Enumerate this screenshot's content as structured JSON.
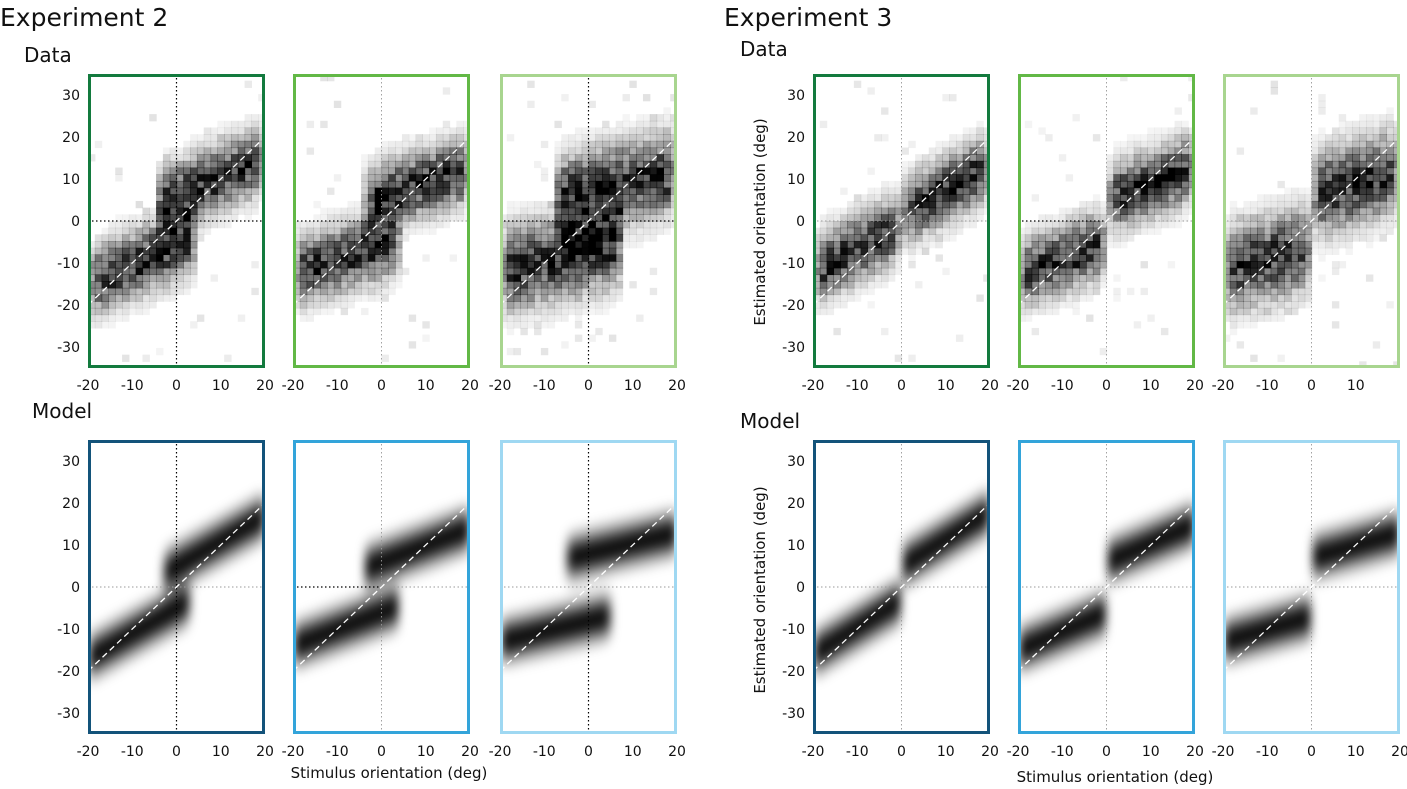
{
  "figure": {
    "experiments": [
      {
        "title": "Experiment 2",
        "data_label": "Data",
        "model_label": "Model",
        "xlabel": "Stimulus orientation (deg)",
        "ylabel": ""
      },
      {
        "title": "Experiment 3",
        "data_label": "Data",
        "model_label": "Model",
        "xlabel": "Stimulus orientation (deg)",
        "ylabel": "Estimated orientation (deg)"
      }
    ],
    "colors": {
      "data_frames": [
        "#137a3e",
        "#62b846",
        "#a8d58f"
      ],
      "model_frames": [
        "#13537a",
        "#33a4da",
        "#9fd8f2"
      ],
      "heat_dark": "#000000",
      "guide_line": "#ffffff"
    }
  },
  "chart_data": [
    {
      "type": "heatmap",
      "experiment": "Experiment 2",
      "row": "Data",
      "panel": 1,
      "xlim": [
        -20,
        20
      ],
      "ylim": [
        -35,
        35
      ],
      "x_ticks": [
        -20,
        -10,
        0,
        10,
        20
      ],
      "y_ticks": [
        30,
        20,
        10,
        0,
        -10,
        -20,
        -30
      ],
      "zero_lines": "black dotted (x=0 and y=0)",
      "identity_line": true,
      "lower_branch": {
        "x_range": [
          -20,
          5
        ],
        "intercept": -6,
        "slope": 0.45,
        "spread": 4
      },
      "upper_branch": {
        "x_range": [
          -5,
          20
        ],
        "intercept": 6,
        "slope": 0.45,
        "spread": 4
      }
    },
    {
      "type": "heatmap",
      "experiment": "Experiment 2",
      "row": "Data",
      "panel": 2,
      "xlim": [
        -20,
        20
      ],
      "ylim": [
        -35,
        35
      ],
      "x_ticks": [
        -20,
        -10,
        0,
        10,
        20
      ],
      "zero_lines": "black dotted y=0 (left half), gray dotted x=0",
      "identity_line": true,
      "lower_branch": {
        "x_range": [
          -20,
          4
        ],
        "intercept": -6,
        "slope": 0.32,
        "spread": 4
      },
      "upper_branch": {
        "x_range": [
          -4,
          20
        ],
        "intercept": 6,
        "slope": 0.32,
        "spread": 4
      }
    },
    {
      "type": "heatmap",
      "experiment": "Experiment 2",
      "row": "Data",
      "panel": 3,
      "xlim": [
        -20,
        20
      ],
      "ylim": [
        -35,
        35
      ],
      "x_ticks": [
        -20,
        -10,
        0,
        10,
        20
      ],
      "zero_lines": "black dotted (x=0 and y=0)",
      "identity_line": true,
      "lower_branch": {
        "x_range": [
          -20,
          8
        ],
        "intercept": -7,
        "slope": 0.25,
        "spread": 5
      },
      "upper_branch": {
        "x_range": [
          -8,
          20
        ],
        "intercept": 7,
        "slope": 0.25,
        "spread": 5
      }
    },
    {
      "type": "heatmap",
      "experiment": "Experiment 2",
      "row": "Model",
      "panel": 1,
      "xlim": [
        -20,
        20
      ],
      "ylim": [
        -35,
        35
      ],
      "x_ticks": [
        -20,
        -10,
        0,
        10,
        20
      ],
      "y_ticks": [
        30,
        20,
        10,
        0,
        -10,
        -20,
        -30
      ],
      "zero_lines": "black dotted x=0, gray dotted y=0",
      "identity_line": true,
      "lower_branch": {
        "x_range": [
          -20,
          3
        ],
        "intercept": -5,
        "slope": 0.6,
        "spread": 3
      },
      "upper_branch": {
        "x_range": [
          -3,
          20
        ],
        "intercept": 5,
        "slope": 0.6,
        "spread": 3
      }
    },
    {
      "type": "heatmap",
      "experiment": "Experiment 2",
      "row": "Model",
      "panel": 2,
      "xlim": [
        -20,
        20
      ],
      "ylim": [
        -35,
        35
      ],
      "x_ticks": [
        -20,
        -10,
        0,
        10,
        20
      ],
      "zero_lines": "black dotted y=0 (left half), gray dotted x=0",
      "identity_line": true,
      "lower_branch": {
        "x_range": [
          -20,
          4
        ],
        "intercept": -6,
        "slope": 0.4,
        "spread": 3
      },
      "upper_branch": {
        "x_range": [
          -4,
          20
        ],
        "intercept": 6,
        "slope": 0.4,
        "spread": 3
      }
    },
    {
      "type": "heatmap",
      "experiment": "Experiment 2",
      "row": "Model",
      "panel": 3,
      "xlim": [
        -20,
        20
      ],
      "ylim": [
        -35,
        35
      ],
      "x_ticks": [
        -20,
        -10,
        0,
        10,
        20
      ],
      "zero_lines": "black dotted x=0, gray dotted y=0",
      "identity_line": true,
      "lower_branch": {
        "x_range": [
          -20,
          5
        ],
        "intercept": -8,
        "slope": 0.25,
        "spread": 3
      },
      "upper_branch": {
        "x_range": [
          -5,
          20
        ],
        "intercept": 8,
        "slope": 0.25,
        "spread": 3
      }
    },
    {
      "type": "heatmap",
      "experiment": "Experiment 3",
      "row": "Data",
      "panel": 1,
      "xlim": [
        -20,
        20
      ],
      "ylim": [
        -35,
        35
      ],
      "x_ticks": [
        -20,
        -10,
        0,
        10,
        20
      ],
      "y_ticks": [
        30,
        20,
        10,
        0,
        -10,
        -20,
        -30
      ],
      "ylabel": "Estimated orientation (deg)",
      "zero_lines": "gray dotted",
      "identity_line": true,
      "lower_branch": {
        "x_range": [
          -20,
          0
        ],
        "intercept": -1,
        "slope": 0.55,
        "spread": 4
      },
      "upper_branch": {
        "x_range": [
          0,
          20
        ],
        "intercept": 2,
        "slope": 0.55,
        "spread": 4
      }
    },
    {
      "type": "heatmap",
      "experiment": "Experiment 3",
      "row": "Data",
      "panel": 2,
      "xlim": [
        -20,
        20
      ],
      "ylim": [
        -35,
        35
      ],
      "x_ticks": [
        -20,
        -10,
        0,
        10,
        20
      ],
      "zero_lines": "black dotted y=0 (left half), gray dotted x=0",
      "identity_line": true,
      "lower_branch": {
        "x_range": [
          -20,
          0
        ],
        "intercept": -5,
        "slope": 0.4,
        "spread": 4
      },
      "upper_branch": {
        "x_range": [
          0,
          20
        ],
        "intercept": 5,
        "slope": 0.4,
        "spread": 4
      }
    },
    {
      "type": "heatmap",
      "experiment": "Experiment 3",
      "row": "Data",
      "panel": 3,
      "xlim": [
        -20,
        20
      ],
      "ylim": [
        -35,
        35
      ],
      "x_ticks": [
        -20,
        -10,
        0,
        10
      ],
      "zero_lines": "gray dotted",
      "identity_line": true,
      "lower_branch": {
        "x_range": [
          -20,
          0
        ],
        "intercept": -6,
        "slope": 0.3,
        "spread": 5
      },
      "upper_branch": {
        "x_range": [
          0,
          20
        ],
        "intercept": 6,
        "slope": 0.3,
        "spread": 5
      }
    },
    {
      "type": "heatmap",
      "experiment": "Experiment 3",
      "row": "Model",
      "panel": 1,
      "xlim": [
        -20,
        20
      ],
      "ylim": [
        -35,
        35
      ],
      "x_ticks": [
        -20,
        -10,
        0,
        10,
        20
      ],
      "y_ticks": [
        30,
        20,
        10,
        0,
        -10,
        -20,
        -30
      ],
      "ylabel": "Estimated orientation (deg)",
      "zero_lines": "gray dotted",
      "identity_line": true,
      "lower_branch": {
        "x_range": [
          -20,
          0
        ],
        "intercept": -3,
        "slope": 0.65,
        "spread": 3
      },
      "upper_branch": {
        "x_range": [
          0,
          20
        ],
        "intercept": 5,
        "slope": 0.65,
        "spread": 3
      }
    },
    {
      "type": "heatmap",
      "experiment": "Experiment 3",
      "row": "Model",
      "panel": 2,
      "xlim": [
        -20,
        20
      ],
      "ylim": [
        -35,
        35
      ],
      "x_ticks": [
        -20,
        -10,
        0,
        10,
        20
      ],
      "zero_lines": "gray dotted",
      "identity_line": true,
      "lower_branch": {
        "x_range": [
          -20,
          0
        ],
        "intercept": -6,
        "slope": 0.45,
        "spread": 3
      },
      "upper_branch": {
        "x_range": [
          0,
          20
        ],
        "intercept": 6,
        "slope": 0.45,
        "spread": 3
      }
    },
    {
      "type": "heatmap",
      "experiment": "Experiment 3",
      "row": "Model",
      "panel": 3,
      "xlim": [
        -20,
        20
      ],
      "ylim": [
        -35,
        35
      ],
      "x_ticks": [
        -20,
        -10,
        0,
        10,
        20
      ],
      "zero_lines": "gray dotted",
      "identity_line": true,
      "lower_branch": {
        "x_range": [
          -20,
          0
        ],
        "intercept": -7,
        "slope": 0.3,
        "spread": 3
      },
      "upper_branch": {
        "x_range": [
          0,
          20
        ],
        "intercept": 7,
        "slope": 0.3,
        "spread": 3
      }
    }
  ]
}
